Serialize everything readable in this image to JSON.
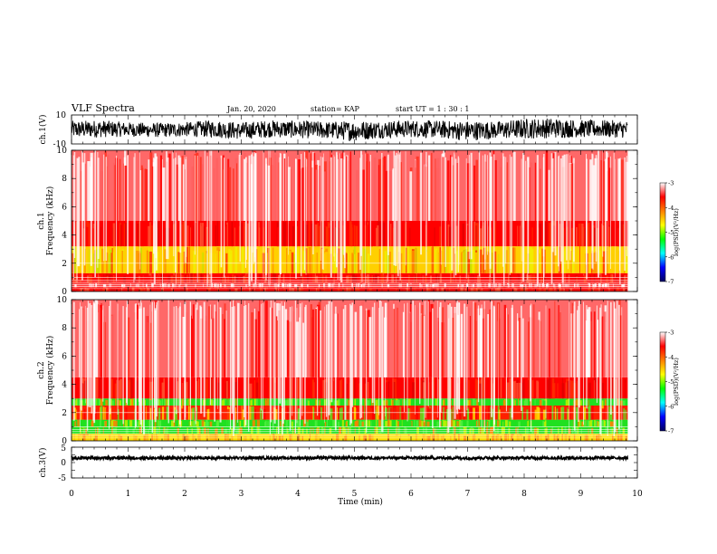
{
  "header": {
    "title": "VLF Spectra",
    "date": "Jan. 20, 2020",
    "station": "station= KAP",
    "start": "start  UT =   1 : 30 : 1"
  },
  "chart_data": [
    {
      "type": "line",
      "name": "ch1-waveform",
      "ylabel": "ch.1(V)",
      "ylim": [
        -10,
        10
      ],
      "yticks": [
        "10",
        "-10"
      ],
      "xlim": [
        0,
        10
      ],
      "data_end_min": 9.83,
      "x": [
        0,
        0.5,
        1,
        1.5,
        2,
        2.5,
        3,
        3.5,
        4,
        4.5,
        5,
        5.5,
        6,
        6.5,
        7,
        7.5,
        8,
        8.5,
        9,
        9.5,
        9.83
      ],
      "y_center": [
        0,
        0.5,
        0,
        -0.5,
        0,
        0.5,
        -1,
        0.5,
        0,
        -0.5,
        -1,
        0,
        0.5,
        0,
        -1,
        -0.5,
        0.5,
        1,
        0.5,
        0.5,
        0
      ],
      "y_amplitude": [
        6,
        6,
        5,
        5,
        5,
        6,
        6,
        6,
        6,
        6,
        7,
        6,
        6,
        6,
        7,
        6,
        7,
        7,
        6,
        6,
        6
      ]
    },
    {
      "type": "heatmap",
      "name": "ch1-spectrogram",
      "ylabel_1": "ch.1",
      "ylabel_2": "Frequency  (kHz)",
      "ylim": [
        0,
        10
      ],
      "yticks": [
        "0",
        "2",
        "4",
        "6",
        "8",
        "10"
      ],
      "xlim": [
        0,
        10
      ],
      "data_end_min": 9.83,
      "band_khz": [
        [
          0.0,
          0.3,
          "red"
        ],
        [
          0.3,
          0.6,
          "white-lines"
        ],
        [
          0.6,
          1.3,
          "red"
        ],
        [
          1.3,
          3.2,
          "yellow-green"
        ],
        [
          3.2,
          5.0,
          "red"
        ],
        [
          5.0,
          10.0,
          "red-sparse"
        ]
      ],
      "colorbar": {
        "label": "log(PSD)(V²/Hz)",
        "ticks": [
          "-3",
          "-4",
          "-5",
          "-6",
          "-7"
        ],
        "range": [
          -7,
          -3
        ]
      }
    },
    {
      "type": "heatmap",
      "name": "ch2-spectrogram",
      "ylabel_1": "ch.2",
      "ylabel_2": "Frequency  (kHz)",
      "ylim": [
        0,
        10
      ],
      "yticks": [
        "0",
        "2",
        "4",
        "6",
        "8",
        "10"
      ],
      "xlim": [
        0,
        10
      ],
      "data_end_min": 9.83,
      "band_khz": [
        [
          0.0,
          0.5,
          "yellow"
        ],
        [
          0.5,
          1.0,
          "green"
        ],
        [
          1.0,
          1.5,
          "green"
        ],
        [
          1.5,
          2.5,
          "green-red"
        ],
        [
          2.5,
          3.0,
          "green"
        ],
        [
          3.0,
          4.5,
          "red"
        ],
        [
          4.5,
          10.0,
          "red-sparse"
        ]
      ],
      "colorbar": {
        "label": "log(PSD)(V²/Hz)",
        "ticks": [
          "-3",
          "-4",
          "-5",
          "-6",
          "-7"
        ],
        "range": [
          -7,
          -3
        ]
      }
    },
    {
      "type": "line",
      "name": "ch3-waveform",
      "ylabel": "ch.3(V)",
      "ylim": [
        -5,
        5
      ],
      "yticks": [
        "5",
        "0",
        "-5"
      ],
      "xlim": [
        0,
        10
      ],
      "xlabel": "Time  (min)",
      "xticks": [
        "0",
        "1",
        "2",
        "3",
        "4",
        "5",
        "6",
        "7",
        "8",
        "9",
        "10"
      ],
      "data_end_min": 9.83,
      "y_center": 1.5,
      "y_amplitude": 0.5
    }
  ]
}
